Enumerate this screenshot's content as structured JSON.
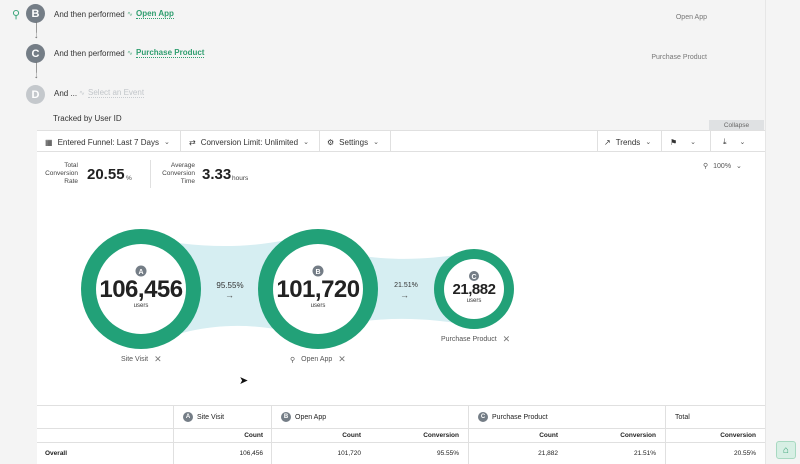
{
  "steps": [
    {
      "letter": "B",
      "prefix": "And then performed",
      "event": "Open App",
      "right_label": "Open App"
    },
    {
      "letter": "C",
      "prefix": "And then performed",
      "event": "Purchase Product",
      "right_label": "Purchase Product"
    },
    {
      "letter": "D",
      "prefix": "And ...",
      "event_placeholder": "Select an Event"
    }
  ],
  "tracked_by": "Tracked by User ID",
  "collapse_label": "Collapse",
  "toolbar": {
    "entered_funnel": "Entered Funnel: Last 7 Days",
    "conversion_limit": "Conversion Limit: Unlimited",
    "settings": "Settings",
    "trends": "Trends"
  },
  "metrics": {
    "total_conversion_label_1": "Total",
    "total_conversion_label_2": "Conversion",
    "total_conversion_label_3": "Rate",
    "total_conversion_value": "20.55",
    "total_conversion_unit": "%",
    "avg_time_label_1": "Average",
    "avg_time_label_2": "Conversion",
    "avg_time_label_3": "Time",
    "avg_time_value": "3.33",
    "avg_time_unit": "hours"
  },
  "zoom": "100%",
  "funnel": {
    "nodes": [
      {
        "letter": "A",
        "value": "106,456",
        "users": "users",
        "name": "Site Visit"
      },
      {
        "letter": "B",
        "value": "101,720",
        "users": "users",
        "name": "Open App"
      },
      {
        "letter": "C",
        "value": "21,882",
        "users": "users",
        "name": "Purchase Product"
      }
    ],
    "conversions": [
      "95.55%",
      "21.51%"
    ]
  },
  "table": {
    "headers": [
      {
        "letter": "A",
        "label": "Site Visit"
      },
      {
        "letter": "B",
        "label": "Open App"
      },
      {
        "letter": "C",
        "label": "Purchase Product"
      },
      {
        "label": "Total"
      }
    ],
    "subheaders": [
      "Count",
      "Count",
      "Conversion",
      "Count",
      "Conversion",
      "Conversion"
    ],
    "rows": [
      {
        "label": "Overall",
        "cells": [
          "106,456",
          "101,720",
          "95.55%",
          "21,882",
          "21.51%",
          "20.55%"
        ]
      }
    ]
  },
  "colors": {
    "accent": "#2f9e6f",
    "ring": "#22a178",
    "flow": "#d6eef2"
  }
}
